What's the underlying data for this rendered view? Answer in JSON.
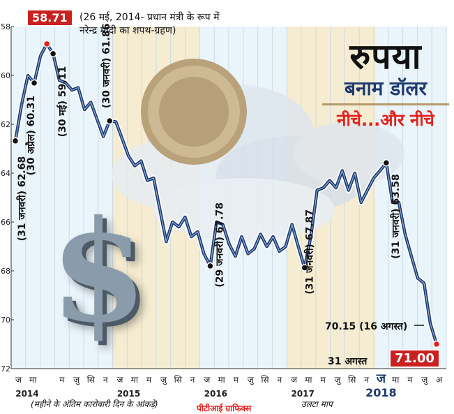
{
  "chart_data": {
    "type": "line",
    "title": "रुपया",
    "subtitle": "बनाम डॉलर",
    "tagline": "नीचे...और नीचे",
    "x_labels": [
      "ज",
      "मा",
      "",
      "म",
      "जु",
      "सि",
      "न",
      "ज",
      "मा",
      "म",
      "जु",
      "सि",
      "न",
      "ज",
      "मा",
      "म",
      "जु",
      "सि",
      "न",
      "ज",
      "मा",
      "म",
      "जु",
      "सि",
      "न",
      "ज",
      "मा",
      "म",
      "जु",
      "अ"
    ],
    "year_labels": [
      "2014",
      "2015",
      "2016",
      "2017",
      "2018"
    ],
    "y_ticks": [
      58,
      60,
      62,
      64,
      66,
      68,
      70,
      72
    ],
    "ylim": [
      58,
      72
    ],
    "y_inverted": true,
    "series": [
      {
        "values": [
          62.68,
          61.2,
          60.0,
          60.31,
          59.2,
          58.71,
          59.11,
          60.2,
          60.3,
          60.6,
          60.5,
          61.4,
          61.1,
          61.8,
          62.5,
          61.86,
          61.9,
          62.6,
          63.3,
          63.7,
          63.5,
          64.3,
          64.2,
          65.5,
          66.8,
          66.0,
          66.2,
          65.8,
          66.6,
          66.4,
          67.3,
          67.8,
          66.0,
          66.1,
          66.9,
          67.4,
          66.6,
          67.3,
          67.1,
          66.5,
          67.0,
          66.6,
          67.2,
          67.0,
          66.1,
          67.0,
          67.87,
          66.6,
          64.7,
          64.6,
          64.3,
          64.6,
          63.9,
          64.7,
          64.0,
          65.2,
          64.7,
          64.2,
          63.9,
          63.58,
          65.2,
          65.2,
          66.5,
          67.4,
          68.3,
          68.5,
          70.15,
          71.0
        ]
      }
    ],
    "highlight_points": [
      {
        "label": "(31 जनवरी) 62.68"
      },
      {
        "label": "(30 अप्रैल) 60.31"
      },
      {
        "label": "58.71",
        "note": "(26 मई, 2014- प्रधान मंत्री के रूप में नरेन्द्र मोदी का शपथ-ग्रहण)"
      },
      {
        "label": "(30 मई) 59.11"
      },
      {
        "label": "(30 जनवरी) 61.86"
      },
      {
        "label": "(29 जनवरी) 67.78"
      },
      {
        "label": "(31 जनवरी) 67.87"
      },
      {
        "label": "(31 जनवरी) 63.58"
      },
      {
        "label": "70.15 (16 अगस्त)"
      },
      {
        "label": "31 अगस्त 71.00"
      }
    ],
    "footnote": "(महीने के अंतिम कारोबारी दिन के आंकड़े)",
    "footnote2": "उलटा माप",
    "source": "पीटीआई ग्राफिक्स",
    "colors": {
      "line": "#1d3a70",
      "highlight": "#e0211c",
      "year_band_a": "#eaf4fb",
      "year_band_b": "#f5ecd2"
    }
  }
}
